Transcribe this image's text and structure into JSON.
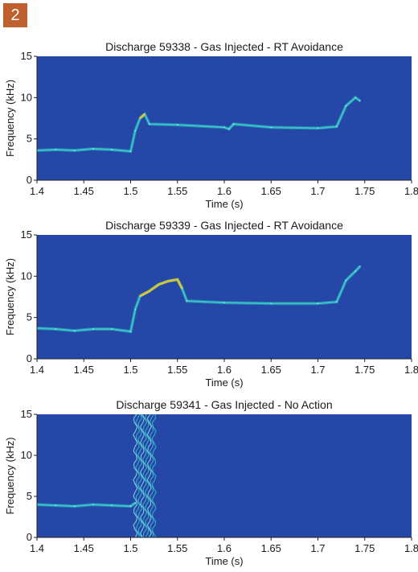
{
  "figure_label": "2",
  "colors": {
    "background": "#2547a8",
    "trace": "#38c2c8",
    "hot": "#d4c43a",
    "badge": "#c0602e"
  },
  "chart_data": [
    {
      "type": "heatmap",
      "title": "Discharge 59338 - Gas Injected - RT Avoidance",
      "xlabel": "Time (s)",
      "ylabel": "Frequency (kHz)",
      "xlim": [
        1.4,
        1.8
      ],
      "ylim": [
        0,
        15
      ],
      "xticks": [
        "1.4",
        "1.45",
        "1.5",
        "1.55",
        "1.6",
        "1.65",
        "1.7",
        "1.75",
        "1.8"
      ],
      "yticks": [
        "0",
        "5",
        "10",
        "15"
      ],
      "series": [
        {
          "x": [
            1.4,
            1.42,
            1.44,
            1.46,
            1.48,
            1.5,
            1.505,
            1.51,
            1.515,
            1.52,
            1.55,
            1.6,
            1.605,
            1.61,
            1.65,
            1.7,
            1.72,
            1.73,
            1.74,
            1.745
          ],
          "y": [
            3.6,
            3.7,
            3.6,
            3.8,
            3.7,
            3.5,
            6.0,
            7.5,
            8.0,
            6.8,
            6.7,
            6.4,
            6.2,
            6.8,
            6.4,
            6.3,
            6.5,
            9.0,
            10.0,
            9.6
          ]
        }
      ],
      "hot_x": [
        1.508,
        1.516
      ]
    },
    {
      "type": "heatmap",
      "title": "Discharge 59339 - Gas Injected - RT Avoidance",
      "xlabel": "Time (s)",
      "ylabel": "Frequency (kHz)",
      "xlim": [
        1.4,
        1.8
      ],
      "ylim": [
        0,
        15
      ],
      "xticks": [
        "1.4",
        "1.45",
        "1.5",
        "1.55",
        "1.6",
        "1.65",
        "1.7",
        "1.75",
        "1.8"
      ],
      "yticks": [
        "0",
        "5",
        "10",
        "15"
      ],
      "series": [
        {
          "x": [
            1.4,
            1.42,
            1.44,
            1.46,
            1.48,
            1.5,
            1.505,
            1.51,
            1.52,
            1.53,
            1.54,
            1.55,
            1.555,
            1.56,
            1.6,
            1.65,
            1.7,
            1.72,
            1.73,
            1.74,
            1.745
          ],
          "y": [
            3.7,
            3.6,
            3.4,
            3.6,
            3.6,
            3.3,
            6.0,
            7.6,
            8.2,
            9.0,
            9.4,
            9.6,
            8.5,
            7.0,
            6.8,
            6.7,
            6.7,
            6.9,
            9.5,
            10.6,
            11.2
          ]
        }
      ],
      "hot_x": [
        1.51,
        1.555
      ]
    },
    {
      "type": "heatmap",
      "title": "Discharge 59341 - Gas Injected - No Action",
      "xlabel": "Time (s)",
      "ylabel": "Frequency (kHz)",
      "xlim": [
        1.4,
        1.8
      ],
      "ylim": [
        0,
        15
      ],
      "xticks": [
        "1.4",
        "1.45",
        "1.5",
        "1.55",
        "1.6",
        "1.65",
        "1.7",
        "1.75",
        "1.8"
      ],
      "yticks": [
        "0",
        "5",
        "10",
        "15"
      ],
      "series": [
        {
          "x": [
            1.4,
            1.42,
            1.44,
            1.46,
            1.48,
            1.5,
            1.505
          ],
          "y": [
            4.0,
            3.9,
            3.8,
            4.0,
            3.9,
            3.8,
            4.2
          ]
        }
      ],
      "burst_x": [
        1.505,
        1.525
      ],
      "burst_y": [
        0,
        15
      ]
    }
  ]
}
